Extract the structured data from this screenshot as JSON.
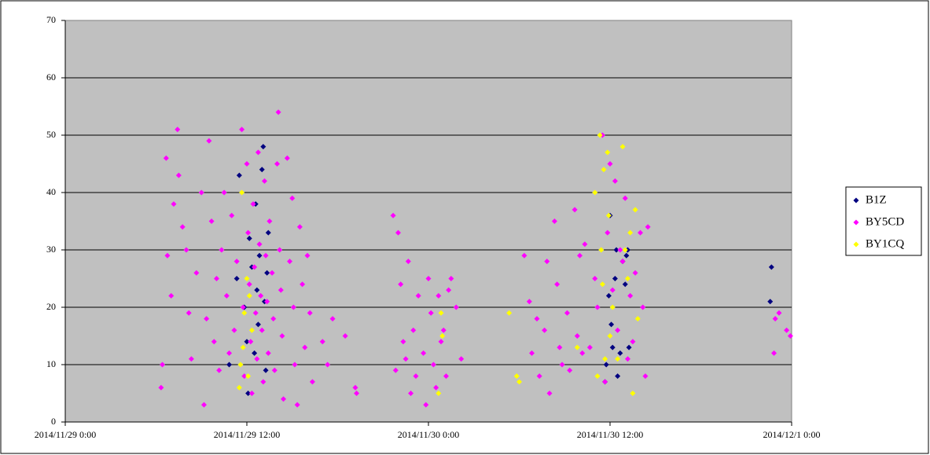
{
  "chart_data": {
    "type": "scatter",
    "xlim": [
      "2014/11/29 0:00",
      "2014/12/1 0:00"
    ],
    "xticks": [
      "2014/11/29 0:00",
      "2014/11/29 12:00",
      "2014/11/30 0:00",
      "2014/11/30 12:00",
      "2014/12/1 0:00"
    ],
    "ylim": [
      0,
      70
    ],
    "yticks": [
      0,
      10,
      20,
      30,
      40,
      50,
      60,
      70
    ],
    "grid": true,
    "legend": "right",
    "series": [
      {
        "name": "B1Z",
        "color": "#000080",
        "x": [
          "2014/11/29 10:50",
          "2014/11/29 11:20",
          "2014/11/29 11:30",
          "2014/11/29 11:50",
          "2014/11/29 12:00",
          "2014/11/29 12:05",
          "2014/11/29 12:10",
          "2014/11/29 12:20",
          "2014/11/29 12:30",
          "2014/11/29 12:35",
          "2014/11/29 12:40",
          "2014/11/29 12:45",
          "2014/11/29 12:50",
          "2014/11/29 13:00",
          "2014/11/29 13:05",
          "2014/11/29 13:10",
          "2014/11/29 13:15",
          "2014/11/29 13:20",
          "2014/11/29 13:25",
          "2014/11/30 11:40",
          "2014/11/30 11:45",
          "2014/11/30 11:55",
          "2014/11/30 12:00",
          "2014/11/30 12:05",
          "2014/11/30 12:10",
          "2014/11/30 12:20",
          "2014/11/30 12:25",
          "2014/11/30 12:30",
          "2014/11/30 12:40",
          "2014/11/30 12:50",
          "2014/11/30 13:00",
          "2014/11/30 13:05",
          "2014/11/30 13:10",
          "2014/11/30 13:15",
          "2014/11/30 22:40",
          "2014/11/30 22:35"
        ],
        "values": [
          10,
          25,
          43,
          20,
          14,
          5,
          32,
          27,
          12,
          38,
          23,
          17,
          29,
          44,
          48,
          21,
          9,
          26,
          33,
          7,
          10,
          22,
          36,
          17,
          13,
          25,
          30,
          8,
          12,
          28,
          24,
          29,
          30,
          13,
          27,
          21
        ]
      },
      {
        "name": "BY5CD",
        "color": "#ff00ff",
        "x": [
          "2014/11/29 6:20",
          "2014/11/29 6:25",
          "2014/11/29 6:40",
          "2014/11/29 6:45",
          "2014/11/29 7:00",
          "2014/11/29 7:10",
          "2014/11/29 7:25",
          "2014/11/29 7:30",
          "2014/11/29 7:45",
          "2014/11/29 8:00",
          "2014/11/29 8:10",
          "2014/11/29 8:20",
          "2014/11/29 8:40",
          "2014/11/29 9:00",
          "2014/11/29 9:10",
          "2014/11/29 9:20",
          "2014/11/29 9:30",
          "2014/11/29 9:40",
          "2014/11/29 9:50",
          "2014/11/29 10:00",
          "2014/11/29 10:10",
          "2014/11/29 10:20",
          "2014/11/29 10:30",
          "2014/11/29 10:40",
          "2014/11/29 10:50",
          "2014/11/29 11:00",
          "2014/11/29 11:10",
          "2014/11/29 11:20",
          "2014/11/29 11:40",
          "2014/11/29 11:45",
          "2014/11/29 11:50",
          "2014/11/29 12:00",
          "2014/11/29 12:05",
          "2014/11/29 12:10",
          "2014/11/29 12:15",
          "2014/11/29 12:20",
          "2014/11/29 12:25",
          "2014/11/29 12:30",
          "2014/11/29 12:35",
          "2014/11/29 12:40",
          "2014/11/29 12:45",
          "2014/11/29 12:50",
          "2014/11/29 12:55",
          "2014/11/29 13:00",
          "2014/11/29 13:05",
          "2014/11/29 13:10",
          "2014/11/29 13:15",
          "2014/11/29 13:20",
          "2014/11/29 13:25",
          "2014/11/29 13:30",
          "2014/11/29 13:40",
          "2014/11/29 13:45",
          "2014/11/29 13:50",
          "2014/11/29 14:00",
          "2014/11/29 14:05",
          "2014/11/29 14:10",
          "2014/11/29 14:15",
          "2014/11/29 14:20",
          "2014/11/29 14:25",
          "2014/11/29 14:40",
          "2014/11/29 14:50",
          "2014/11/29 15:00",
          "2014/11/29 15:05",
          "2014/11/29 15:10",
          "2014/11/29 15:20",
          "2014/11/29 15:30",
          "2014/11/29 15:40",
          "2014/11/29 15:50",
          "2014/11/29 16:00",
          "2014/11/29 16:10",
          "2014/11/29 16:20",
          "2014/11/29 17:00",
          "2014/11/29 17:20",
          "2014/11/29 17:40",
          "2014/11/29 18:30",
          "2014/11/29 19:10",
          "2014/11/29 19:15",
          "2014/11/29 21:40",
          "2014/11/29 21:50",
          "2014/11/29 22:00",
          "2014/11/29 22:10",
          "2014/11/29 22:20",
          "2014/11/29 22:30",
          "2014/11/29 22:40",
          "2014/11/29 22:50",
          "2014/11/29 23:00",
          "2014/11/29 23:10",
          "2014/11/29 23:20",
          "2014/11/29 23:40",
          "2014/11/29 23:50",
          "2014/11/30 0:00",
          "2014/11/30 0:10",
          "2014/11/30 0:20",
          "2014/11/30 0:30",
          "2014/11/30 0:40",
          "2014/11/30 0:50",
          "2014/11/30 1:00",
          "2014/11/30 1:10",
          "2014/11/30 1:20",
          "2014/11/30 1:30",
          "2014/11/30 1:50",
          "2014/11/30 2:10",
          "2014/11/30 6:20",
          "2014/11/30 6:40",
          "2014/11/30 6:50",
          "2014/11/30 7:10",
          "2014/11/30 7:20",
          "2014/11/30 7:40",
          "2014/11/30 7:50",
          "2014/11/30 8:00",
          "2014/11/30 8:20",
          "2014/11/30 8:30",
          "2014/11/30 8:40",
          "2014/11/30 8:50",
          "2014/11/30 9:10",
          "2014/11/30 9:20",
          "2014/11/30 9:40",
          "2014/11/30 9:50",
          "2014/11/30 10:00",
          "2014/11/30 10:10",
          "2014/11/30 10:20",
          "2014/11/30 10:40",
          "2014/11/30 11:00",
          "2014/11/30 11:10",
          "2014/11/30 11:30",
          "2014/11/30 11:40",
          "2014/11/30 11:50",
          "2014/11/30 12:00",
          "2014/11/30 12:10",
          "2014/11/30 12:20",
          "2014/11/30 12:30",
          "2014/11/30 12:40",
          "2014/11/30 12:50",
          "2014/11/30 13:00",
          "2014/11/30 13:10",
          "2014/11/30 13:20",
          "2014/11/30 13:30",
          "2014/11/30 13:40",
          "2014/11/30 14:00",
          "2014/11/30 14:10",
          "2014/11/30 14:20",
          "2014/11/30 14:30",
          "2014/11/30 22:50",
          "2014/11/30 22:55",
          "2014/11/30 23:10",
          "2014/11/30 23:40",
          "2014/11/30 23:55"
        ],
        "values": [
          6,
          10,
          46,
          29,
          22,
          38,
          51,
          43,
          34,
          30,
          19,
          11,
          26,
          40,
          3,
          18,
          49,
          35,
          14,
          25,
          9,
          30,
          40,
          22,
          12,
          36,
          16,
          28,
          51,
          20,
          8,
          45,
          33,
          24,
          14,
          5,
          38,
          27,
          19,
          11,
          47,
          31,
          22,
          16,
          7,
          42,
          29,
          21,
          12,
          35,
          26,
          18,
          9,
          45,
          54,
          30,
          23,
          15,
          4,
          46,
          28,
          39,
          20,
          10,
          3,
          34,
          24,
          13,
          29,
          19,
          7,
          14,
          10,
          18,
          15,
          6,
          5,
          36,
          9,
          33,
          24,
          14,
          11,
          28,
          5,
          16,
          8,
          22,
          12,
          3,
          25,
          19,
          10,
          6,
          22,
          14,
          16,
          8,
          23,
          25,
          20,
          11,
          29,
          21,
          12,
          18,
          8,
          16,
          28,
          5,
          35,
          24,
          13,
          10,
          19,
          9,
          37,
          15,
          29,
          12,
          31,
          13,
          25,
          20,
          50,
          7,
          33,
          45,
          23,
          42,
          16,
          30,
          28,
          39,
          11,
          22,
          14,
          26,
          33,
          20,
          8,
          34,
          12,
          18,
          19,
          16,
          15
        ]
      },
      {
        "name": "BY1CQ",
        "color": "#ffff00",
        "x": [
          "2014/11/29 11:30",
          "2014/11/29 11:35",
          "2014/11/29 11:40",
          "2014/11/29 11:45",
          "2014/11/29 11:50",
          "2014/11/29 12:00",
          "2014/11/29 12:05",
          "2014/11/29 12:10",
          "2014/11/29 12:20",
          "2014/11/30 0:40",
          "2014/11/30 0:50",
          "2014/11/30 0:55",
          "2014/11/30 5:20",
          "2014/11/30 5:50",
          "2014/11/30 6:00",
          "2014/11/30 9:50",
          "2014/11/30 11:00",
          "2014/11/30 11:10",
          "2014/11/30 11:20",
          "2014/11/30 11:25",
          "2014/11/30 11:30",
          "2014/11/30 11:35",
          "2014/11/30 11:40",
          "2014/11/30 11:50",
          "2014/11/30 11:55",
          "2014/11/30 12:00",
          "2014/11/30 12:10",
          "2014/11/30 12:30",
          "2014/11/30 12:50",
          "2014/11/30 13:00",
          "2014/11/30 13:10",
          "2014/11/30 13:20",
          "2014/11/30 13:30",
          "2014/11/30 13:40",
          "2014/11/30 13:50"
        ],
        "values": [
          6,
          10,
          40,
          13,
          19,
          25,
          8,
          22,
          16,
          5,
          19,
          15,
          19,
          8,
          7,
          13,
          40,
          8,
          50,
          30,
          24,
          44,
          11,
          47,
          36,
          15,
          20,
          11,
          48,
          30,
          25,
          33,
          5,
          37,
          18
        ]
      }
    ]
  }
}
